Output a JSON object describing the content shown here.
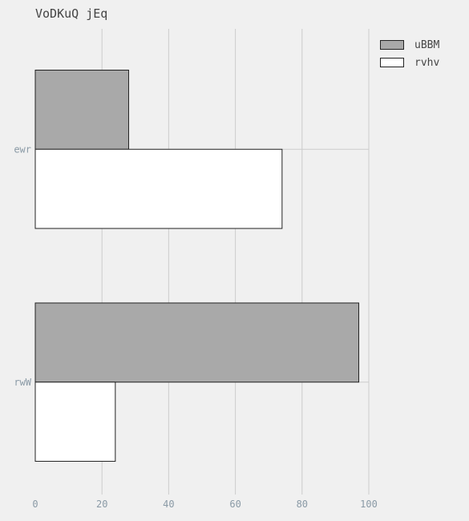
{
  "title": "VoDKuQ jEq",
  "chart_data": {
    "type": "bar",
    "orientation": "horizontal",
    "title": "VoDKuQ jEq",
    "categories": [
      "ewr",
      "rwW"
    ],
    "series": [
      {
        "name": "uBBM",
        "values": [
          28,
          97
        ],
        "color": "#a9a9a9"
      },
      {
        "name": "rvhv",
        "values": [
          74,
          24
        ],
        "color": "#ffffff"
      }
    ],
    "xlim": [
      0,
      100
    ],
    "xticks": [
      0,
      20,
      40,
      60,
      80,
      100
    ],
    "grid": true,
    "legend_position": "top-right"
  },
  "colors": {
    "background": "#f0f0f0",
    "grid": "#cccccc",
    "tick_text": "#8a9aa6",
    "bar_edge": "#222222"
  }
}
